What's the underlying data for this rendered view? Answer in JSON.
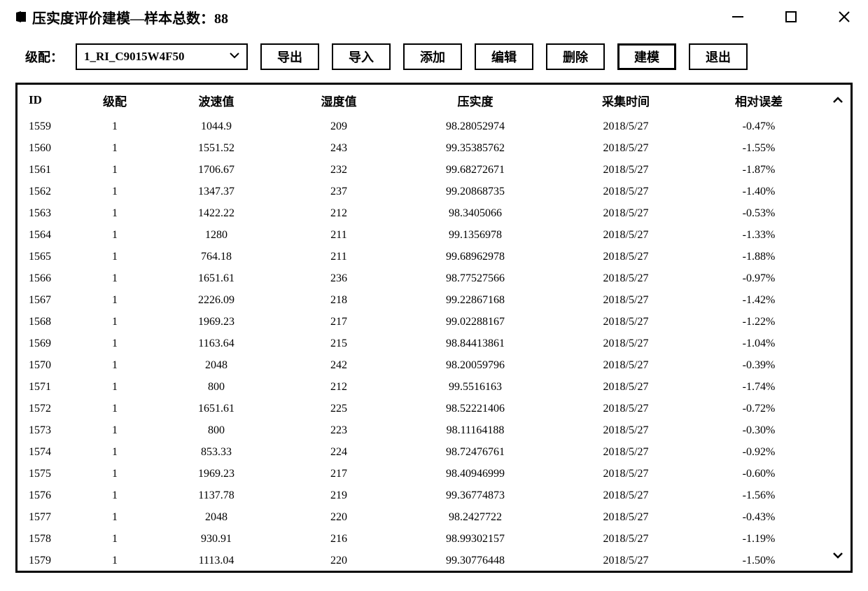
{
  "window": {
    "title": "压实度评价建模—样本总数：88",
    "minimize_label": "—",
    "maximize_label": "□",
    "close_label": "×"
  },
  "toolbar": {
    "filter_label": "级配：",
    "dropdown_value": "1_RI_C9015W4F50",
    "buttons": {
      "export": "导出",
      "import": "导入",
      "add": "添加",
      "edit": "编辑",
      "delete": "删除",
      "build": "建模",
      "exit": "退出"
    }
  },
  "table": {
    "columns": [
      "ID",
      "级配",
      "波速值",
      "湿度值",
      "压实度",
      "采集时间",
      "相对误差"
    ],
    "rows": [
      [
        "1559",
        "1",
        "1044.9",
        "209",
        "98.28052974",
        "2018/5/27",
        "-0.47%"
      ],
      [
        "1560",
        "1",
        "1551.52",
        "243",
        "99.35385762",
        "2018/5/27",
        "-1.55%"
      ],
      [
        "1561",
        "1",
        "1706.67",
        "232",
        "99.68272671",
        "2018/5/27",
        "-1.87%"
      ],
      [
        "1562",
        "1",
        "1347.37",
        "237",
        "99.20868735",
        "2018/5/27",
        "-1.40%"
      ],
      [
        "1563",
        "1",
        "1422.22",
        "212",
        "98.3405066",
        "2018/5/27",
        "-0.53%"
      ],
      [
        "1564",
        "1",
        "1280",
        "211",
        "99.1356978",
        "2018/5/27",
        "-1.33%"
      ],
      [
        "1565",
        "1",
        "764.18",
        "211",
        "99.68962978",
        "2018/5/27",
        "-1.88%"
      ],
      [
        "1566",
        "1",
        "1651.61",
        "236",
        "98.77527566",
        "2018/5/27",
        "-0.97%"
      ],
      [
        "1567",
        "1",
        "2226.09",
        "218",
        "99.22867168",
        "2018/5/27",
        "-1.42%"
      ],
      [
        "1568",
        "1",
        "1969.23",
        "217",
        "99.02288167",
        "2018/5/27",
        "-1.22%"
      ],
      [
        "1569",
        "1",
        "1163.64",
        "215",
        "98.84413861",
        "2018/5/27",
        "-1.04%"
      ],
      [
        "1570",
        "1",
        "2048",
        "242",
        "98.20059796",
        "2018/5/27",
        "-0.39%"
      ],
      [
        "1571",
        "1",
        "800",
        "212",
        "99.5516163",
        "2018/5/27",
        "-1.74%"
      ],
      [
        "1572",
        "1",
        "1651.61",
        "225",
        "98.52221406",
        "2018/5/27",
        "-0.72%"
      ],
      [
        "1573",
        "1",
        "800",
        "223",
        "98.11164188",
        "2018/5/27",
        "-0.30%"
      ],
      [
        "1574",
        "1",
        "853.33",
        "224",
        "98.72476761",
        "2018/5/27",
        "-0.92%"
      ],
      [
        "1575",
        "1",
        "1969.23",
        "217",
        "98.40946999",
        "2018/5/27",
        "-0.60%"
      ],
      [
        "1576",
        "1",
        "1137.78",
        "219",
        "99.36774873",
        "2018/5/27",
        "-1.56%"
      ],
      [
        "1577",
        "1",
        "2048",
        "220",
        "98.2427722",
        "2018/5/27",
        "-0.43%"
      ],
      [
        "1578",
        "1",
        "930.91",
        "216",
        "98.99302157",
        "2018/5/27",
        "-1.19%"
      ],
      [
        "1579",
        "1",
        "1113.04",
        "220",
        "99.30776448",
        "2018/5/27",
        "-1.50%"
      ]
    ]
  },
  "colors": {
    "border": "#000000",
    "background": "#ffffff",
    "text": "#000000"
  }
}
